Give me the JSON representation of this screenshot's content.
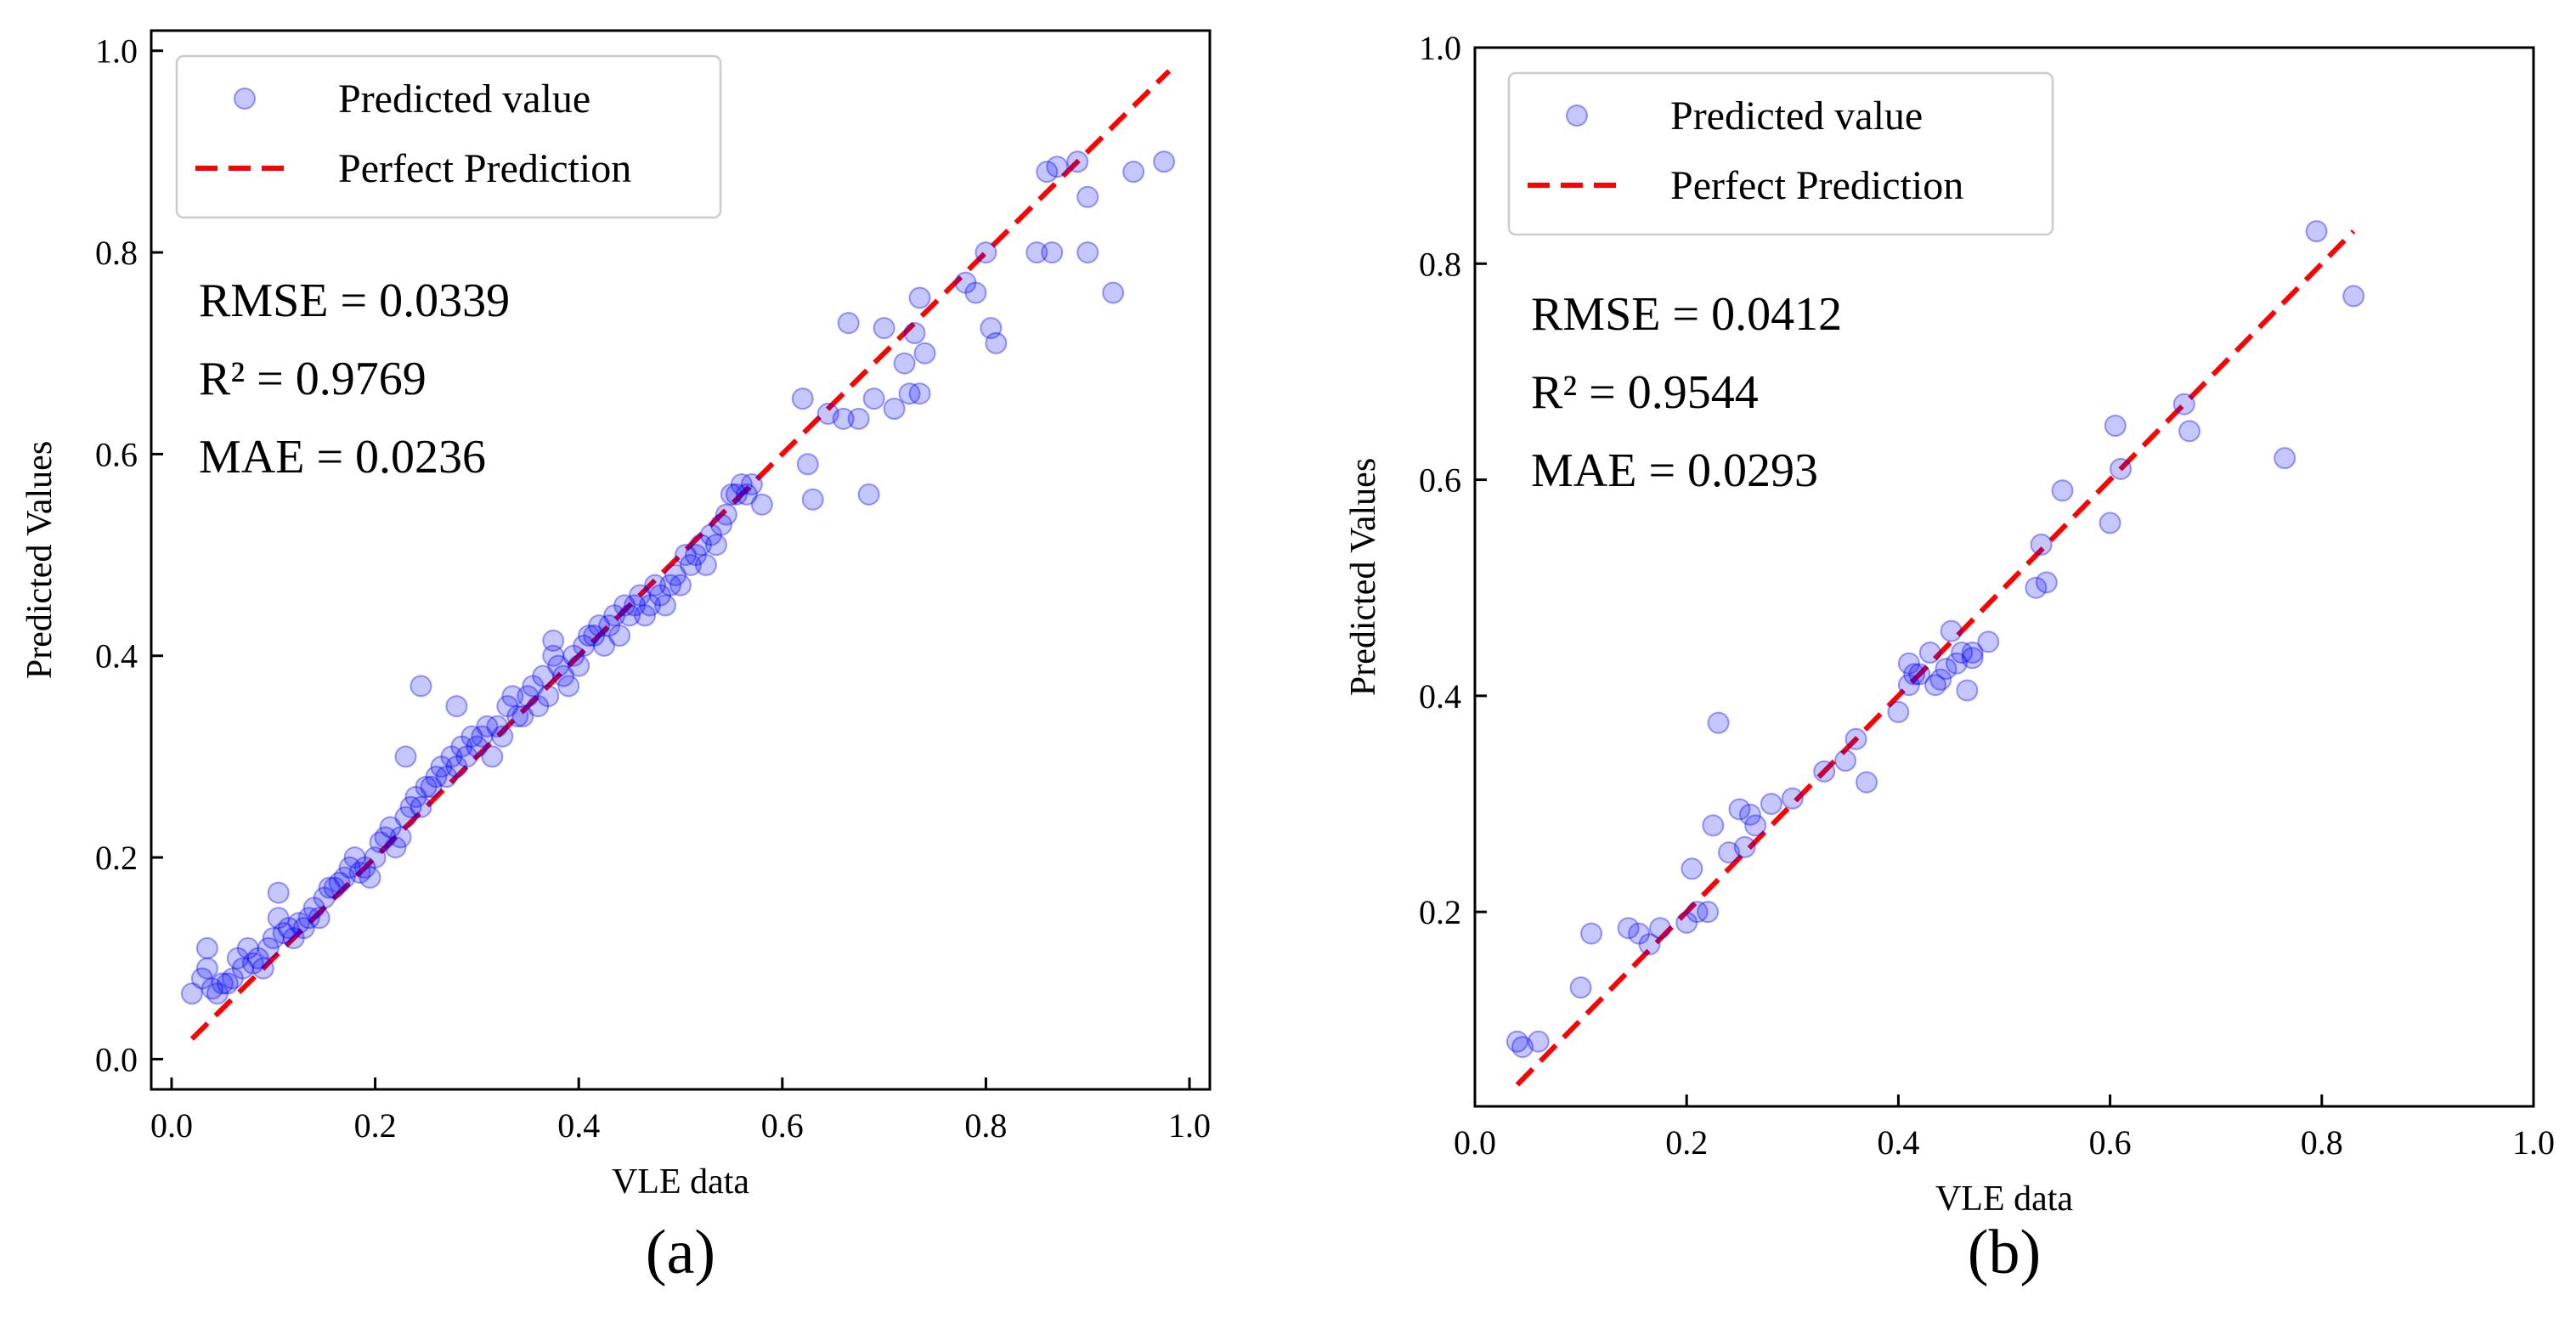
{
  "chart_data": [
    {
      "type": "scatter",
      "panel_label": "(a)",
      "xlabel": "VLE data",
      "ylabel": "Predicted Values",
      "xlim": [
        -0.02,
        1.02
      ],
      "ylim": [
        -0.03,
        1.02
      ],
      "xticks": [
        "0.0",
        "0.2",
        "0.4",
        "0.6",
        "0.8",
        "1.0"
      ],
      "yticks": [
        "0.0",
        "0.2",
        "0.4",
        "0.6",
        "0.8",
        "1.0"
      ],
      "legend": {
        "placement": "top-left",
        "scatter_label": "Predicted value",
        "line_label": "Perfect Prediction"
      },
      "metrics": [
        "RMSE = 0.0339",
        "R² = 0.9769",
        "MAE = 0.0236"
      ],
      "colors": {
        "points": "#0000ff",
        "line": "#ff0000"
      },
      "perfect_line": {
        "x": [
          0.02,
          0.98
        ],
        "y": [
          0.02,
          0.98
        ]
      },
      "series": [
        {
          "name": "Predicted value",
          "x": [
            0.02,
            0.03,
            0.035,
            0.04,
            0.045,
            0.05,
            0.055,
            0.06,
            0.065,
            0.07,
            0.075,
            0.08,
            0.085,
            0.09,
            0.095,
            0.1,
            0.105,
            0.11,
            0.115,
            0.12,
            0.125,
            0.13,
            0.135,
            0.14,
            0.145,
            0.15,
            0.155,
            0.16,
            0.165,
            0.17,
            0.175,
            0.18,
            0.185,
            0.19,
            0.195,
            0.2,
            0.205,
            0.21,
            0.215,
            0.22,
            0.225,
            0.23,
            0.235,
            0.24,
            0.245,
            0.25,
            0.255,
            0.26,
            0.265,
            0.27,
            0.275,
            0.28,
            0.285,
            0.29,
            0.295,
            0.3,
            0.305,
            0.31,
            0.315,
            0.32,
            0.325,
            0.33,
            0.335,
            0.34,
            0.345,
            0.35,
            0.355,
            0.36,
            0.365,
            0.37,
            0.375,
            0.38,
            0.385,
            0.39,
            0.395,
            0.4,
            0.405,
            0.41,
            0.415,
            0.42,
            0.425,
            0.43,
            0.435,
            0.44,
            0.445,
            0.45,
            0.455,
            0.46,
            0.465,
            0.47,
            0.475,
            0.48,
            0.485,
            0.49,
            0.495,
            0.5,
            0.505,
            0.51,
            0.515,
            0.52,
            0.525,
            0.53,
            0.535,
            0.54,
            0.545,
            0.55,
            0.555,
            0.56,
            0.565,
            0.57,
            0.58,
            0.035,
            0.105,
            0.245,
            0.23,
            0.28,
            0.375,
            0.62,
            0.63,
            0.625,
            0.645,
            0.66,
            0.665,
            0.675,
            0.685,
            0.69,
            0.7,
            0.71,
            0.72,
            0.725,
            0.73,
            0.735,
            0.735,
            0.74,
            0.78,
            0.79,
            0.8,
            0.805,
            0.81,
            0.85,
            0.86,
            0.865,
            0.87,
            0.89,
            0.9,
            0.9,
            0.925,
            0.945,
            0.975
          ],
          "y": [
            0.065,
            0.08,
            0.09,
            0.07,
            0.065,
            0.075,
            0.075,
            0.08,
            0.1,
            0.09,
            0.11,
            0.095,
            0.1,
            0.09,
            0.11,
            0.12,
            0.14,
            0.125,
            0.13,
            0.12,
            0.135,
            0.13,
            0.14,
            0.15,
            0.14,
            0.16,
            0.17,
            0.17,
            0.175,
            0.18,
            0.19,
            0.2,
            0.185,
            0.19,
            0.18,
            0.2,
            0.215,
            0.22,
            0.23,
            0.21,
            0.22,
            0.24,
            0.25,
            0.26,
            0.25,
            0.27,
            0.27,
            0.28,
            0.29,
            0.28,
            0.3,
            0.29,
            0.31,
            0.3,
            0.32,
            0.31,
            0.32,
            0.33,
            0.3,
            0.33,
            0.32,
            0.35,
            0.36,
            0.34,
            0.34,
            0.36,
            0.37,
            0.35,
            0.38,
            0.36,
            0.4,
            0.39,
            0.38,
            0.37,
            0.4,
            0.39,
            0.41,
            0.42,
            0.42,
            0.43,
            0.41,
            0.43,
            0.44,
            0.42,
            0.45,
            0.44,
            0.45,
            0.46,
            0.44,
            0.45,
            0.47,
            0.46,
            0.45,
            0.47,
            0.48,
            0.47,
            0.5,
            0.49,
            0.5,
            0.51,
            0.49,
            0.52,
            0.51,
            0.53,
            0.54,
            0.56,
            0.56,
            0.57,
            0.56,
            0.57,
            0.55,
            0.11,
            0.165,
            0.37,
            0.3,
            0.35,
            0.415,
            0.655,
            0.555,
            0.59,
            0.64,
            0.635,
            0.73,
            0.635,
            0.56,
            0.655,
            0.725,
            0.645,
            0.69,
            0.66,
            0.72,
            0.755,
            0.66,
            0.7,
            0.77,
            0.76,
            0.8,
            0.725,
            0.71,
            0.8,
            0.88,
            0.8,
            0.885,
            0.89,
            0.855,
            0.8,
            0.76,
            0.88,
            0.89
          ]
        }
      ]
    },
    {
      "type": "scatter",
      "panel_label": "(b)",
      "xlabel": "VLE data",
      "ylabel": "Predicted Values",
      "xlim": [
        0.0,
        1.0
      ],
      "ylim": [
        0.02,
        1.0
      ],
      "xticks": [
        "0.0",
        "0.2",
        "0.4",
        "0.6",
        "0.8",
        "1.0"
      ],
      "yticks": [
        "0.2",
        "0.4",
        "0.6",
        "0.8",
        "1.0"
      ],
      "legend": {
        "placement": "top-left",
        "scatter_label": "Predicted value",
        "line_label": "Perfect Prediction"
      },
      "metrics": [
        "RMSE = 0.0412",
        "R² = 0.9544",
        "MAE = 0.0293"
      ],
      "colors": {
        "points": "#0000ff",
        "line": "#ff0000"
      },
      "perfect_line": {
        "x": [
          0.04,
          0.83
        ],
        "y": [
          0.04,
          0.83
        ]
      },
      "series": [
        {
          "name": "Predicted value",
          "x": [
            0.04,
            0.045,
            0.06,
            0.1,
            0.11,
            0.145,
            0.155,
            0.165,
            0.175,
            0.2,
            0.205,
            0.21,
            0.22,
            0.225,
            0.23,
            0.24,
            0.25,
            0.255,
            0.26,
            0.265,
            0.28,
            0.3,
            0.33,
            0.35,
            0.36,
            0.37,
            0.4,
            0.41,
            0.41,
            0.415,
            0.42,
            0.43,
            0.435,
            0.44,
            0.445,
            0.45,
            0.455,
            0.46,
            0.465,
            0.47,
            0.47,
            0.485,
            0.53,
            0.535,
            0.54,
            0.555,
            0.6,
            0.605,
            0.61,
            0.67,
            0.675,
            0.765,
            0.795,
            0.83
          ],
          "y": [
            0.08,
            0.075,
            0.08,
            0.13,
            0.18,
            0.185,
            0.18,
            0.17,
            0.185,
            0.19,
            0.24,
            0.2,
            0.2,
            0.28,
            0.375,
            0.255,
            0.295,
            0.26,
            0.29,
            0.28,
            0.3,
            0.305,
            0.33,
            0.34,
            0.36,
            0.32,
            0.385,
            0.41,
            0.43,
            0.42,
            0.42,
            0.44,
            0.41,
            0.415,
            0.425,
            0.46,
            0.43,
            0.44,
            0.405,
            0.435,
            0.44,
            0.45,
            0.5,
            0.54,
            0.505,
            0.59,
            0.56,
            0.65,
            0.61,
            0.67,
            0.645,
            0.62,
            0.83,
            0.77
          ]
        }
      ]
    }
  ]
}
